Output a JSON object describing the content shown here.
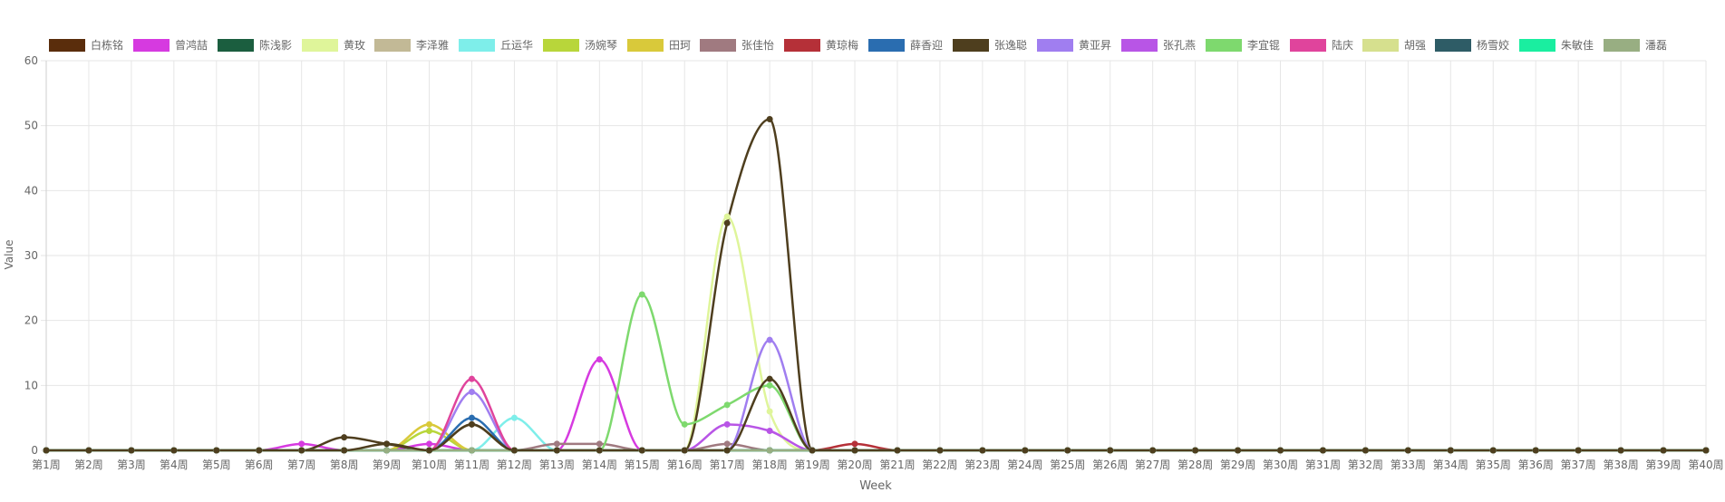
{
  "chart_data": {
    "type": "line",
    "xlabel": "Week",
    "ylabel": "Value",
    "ylim": [
      0,
      60
    ],
    "yticks": [
      0,
      10,
      20,
      30,
      40,
      50,
      60
    ],
    "grid": true,
    "legend_position": "top",
    "categories": [
      "第1周",
      "第2周",
      "第3周",
      "第4周",
      "第5周",
      "第6周",
      "第7周",
      "第8周",
      "第9周",
      "第10周",
      "第11周",
      "第12周",
      "第13周",
      "第14周",
      "第15周",
      "第16周",
      "第17周",
      "第18周",
      "第19周",
      "第20周",
      "第21周",
      "第22周",
      "第23周",
      "第24周",
      "第25周",
      "第26周",
      "第27周",
      "第28周",
      "第29周",
      "第30周",
      "第31周",
      "第32周",
      "第33周",
      "第34周",
      "第35周",
      "第36周",
      "第37周",
      "第38周",
      "第39周",
      "第40周"
    ],
    "series": [
      {
        "name": "白栋铭",
        "color": "#5a2d0c",
        "values": [
          0,
          0,
          0,
          0,
          0,
          0,
          0,
          0,
          0,
          0,
          0,
          0,
          0,
          0,
          0,
          0,
          0,
          0,
          0,
          0,
          0,
          0,
          0,
          0,
          0,
          0,
          0,
          0,
          0,
          0,
          0,
          0,
          0,
          0,
          0,
          0,
          0,
          0,
          0,
          0
        ]
      },
      {
        "name": "曾鸿喆",
        "color": "#d63ae0",
        "values": [
          0,
          0,
          0,
          0,
          0,
          0,
          1,
          0,
          0,
          1,
          0,
          0,
          0,
          14,
          0,
          0,
          0,
          0,
          0,
          0,
          0,
          0,
          0,
          0,
          0,
          0,
          0,
          0,
          0,
          0,
          0,
          0,
          0,
          0,
          0,
          0,
          0,
          0,
          0,
          0
        ]
      },
      {
        "name": "陈浅影",
        "color": "#1b5e3f",
        "values": [
          0,
          0,
          0,
          0,
          0,
          0,
          0,
          0,
          0,
          0,
          0,
          0,
          0,
          0,
          0,
          0,
          0,
          0,
          0,
          0,
          0,
          0,
          0,
          0,
          0,
          0,
          0,
          0,
          0,
          0,
          0,
          0,
          0,
          0,
          0,
          0,
          0,
          0,
          0,
          0
        ]
      },
      {
        "name": "黄玫",
        "color": "#dff59a",
        "values": [
          0,
          0,
          0,
          0,
          0,
          0,
          0,
          0,
          0,
          0,
          0,
          0,
          0,
          0,
          0,
          0,
          36,
          6,
          0,
          0,
          0,
          0,
          0,
          0,
          0,
          0,
          0,
          0,
          0,
          0,
          0,
          0,
          0,
          0,
          0,
          0,
          0,
          0,
          0,
          0
        ]
      },
      {
        "name": "李泽雅",
        "color": "#c2b996",
        "values": [
          0,
          0,
          0,
          0,
          0,
          0,
          0,
          0,
          0,
          0,
          0,
          0,
          0,
          0,
          0,
          0,
          0,
          0,
          0,
          0,
          0,
          0,
          0,
          0,
          0,
          0,
          0,
          0,
          0,
          0,
          0,
          0,
          0,
          0,
          0,
          0,
          0,
          0,
          0,
          0
        ]
      },
      {
        "name": "丘运华",
        "color": "#7eeeea",
        "values": [
          0,
          0,
          0,
          0,
          0,
          0,
          0,
          0,
          0,
          0,
          0,
          5,
          0,
          0,
          0,
          0,
          0,
          0,
          0,
          0,
          0,
          0,
          0,
          0,
          0,
          0,
          0,
          0,
          0,
          0,
          0,
          0,
          0,
          0,
          0,
          0,
          0,
          0,
          0,
          0
        ]
      },
      {
        "name": "汤婉琴",
        "color": "#b8d63a",
        "values": [
          0,
          0,
          0,
          0,
          0,
          0,
          0,
          0,
          0,
          3,
          0,
          0,
          0,
          0,
          0,
          0,
          0,
          0,
          0,
          0,
          0,
          0,
          0,
          0,
          0,
          0,
          0,
          0,
          0,
          0,
          0,
          0,
          0,
          0,
          0,
          0,
          0,
          0,
          0,
          0
        ]
      },
      {
        "name": "田珂",
        "color": "#d9c93a",
        "values": [
          0,
          0,
          0,
          0,
          0,
          0,
          0,
          0,
          0,
          4,
          0,
          0,
          0,
          0,
          0,
          0,
          0,
          0,
          0,
          0,
          0,
          0,
          0,
          0,
          0,
          0,
          0,
          0,
          0,
          0,
          0,
          0,
          0,
          0,
          0,
          0,
          0,
          0,
          0,
          0
        ]
      },
      {
        "name": "张佳怡",
        "color": "#a07a80",
        "values": [
          0,
          0,
          0,
          0,
          0,
          0,
          0,
          0,
          0,
          0,
          0,
          0,
          1,
          1,
          0,
          0,
          1,
          0,
          0,
          0,
          0,
          0,
          0,
          0,
          0,
          0,
          0,
          0,
          0,
          0,
          0,
          0,
          0,
          0,
          0,
          0,
          0,
          0,
          0,
          0
        ]
      },
      {
        "name": "黄琼梅",
        "color": "#b53038",
        "values": [
          0,
          0,
          0,
          0,
          0,
          0,
          0,
          0,
          0,
          0,
          0,
          0,
          0,
          0,
          0,
          0,
          0,
          0,
          0,
          1,
          0,
          0,
          0,
          0,
          0,
          0,
          0,
          0,
          0,
          0,
          0,
          0,
          0,
          0,
          0,
          0,
          0,
          0,
          0,
          0
        ]
      },
      {
        "name": "薛香迎",
        "color": "#2a6db0",
        "values": [
          0,
          0,
          0,
          0,
          0,
          0,
          0,
          0,
          0,
          0,
          5,
          0,
          0,
          0,
          0,
          0,
          0,
          0,
          0,
          0,
          0,
          0,
          0,
          0,
          0,
          0,
          0,
          0,
          0,
          0,
          0,
          0,
          0,
          0,
          0,
          0,
          0,
          0,
          0,
          0
        ]
      },
      {
        "name": "张逸聪",
        "color": "#4e3e1e",
        "values": [
          0,
          0,
          0,
          0,
          0,
          0,
          0,
          2,
          1,
          0,
          4,
          0,
          0,
          0,
          0,
          0,
          35,
          51,
          0,
          0,
          0,
          0,
          0,
          0,
          0,
          0,
          0,
          0,
          0,
          0,
          0,
          0,
          0,
          0,
          0,
          0,
          0,
          0,
          0,
          0
        ]
      },
      {
        "name": "黄亚昇",
        "color": "#a07ef0",
        "values": [
          0,
          0,
          0,
          0,
          0,
          0,
          0,
          0,
          0,
          0,
          9,
          0,
          0,
          0,
          0,
          0,
          0,
          17,
          0,
          0,
          0,
          0,
          0,
          0,
          0,
          0,
          0,
          0,
          0,
          0,
          0,
          0,
          0,
          0,
          0,
          0,
          0,
          0,
          0,
          0
        ]
      },
      {
        "name": "张孔燕",
        "color": "#b855e6",
        "values": [
          0,
          0,
          0,
          0,
          0,
          0,
          0,
          0,
          0,
          0,
          0,
          0,
          0,
          0,
          0,
          0,
          4,
          3,
          0,
          0,
          0,
          0,
          0,
          0,
          0,
          0,
          0,
          0,
          0,
          0,
          0,
          0,
          0,
          0,
          0,
          0,
          0,
          0,
          0,
          0
        ]
      },
      {
        "name": "李宜锟",
        "color": "#7ed96e",
        "values": [
          0,
          0,
          0,
          0,
          0,
          0,
          0,
          0,
          0,
          0,
          0,
          0,
          0,
          0,
          24,
          4,
          7,
          10,
          0,
          0,
          0,
          0,
          0,
          0,
          0,
          0,
          0,
          0,
          0,
          0,
          0,
          0,
          0,
          0,
          0,
          0,
          0,
          0,
          0,
          0
        ]
      },
      {
        "name": "陆庆",
        "color": "#e0449c",
        "values": [
          0,
          0,
          0,
          0,
          0,
          0,
          0,
          0,
          0,
          0,
          11,
          0,
          0,
          0,
          0,
          0,
          0,
          0,
          0,
          0,
          0,
          0,
          0,
          0,
          0,
          0,
          0,
          0,
          0,
          0,
          0,
          0,
          0,
          0,
          0,
          0,
          0,
          0,
          0,
          0
        ]
      },
      {
        "name": "胡强",
        "color": "#d6e08e",
        "values": [
          0,
          0,
          0,
          0,
          0,
          0,
          0,
          0,
          0,
          0,
          0,
          0,
          0,
          0,
          0,
          0,
          0,
          0,
          0,
          0,
          0,
          0,
          0,
          0,
          0,
          0,
          0,
          0,
          0,
          0,
          0,
          0,
          0,
          0,
          0,
          0,
          0,
          0,
          0,
          0
        ]
      },
      {
        "name": "杨雪姣",
        "color": "#2e5c66",
        "values": [
          0,
          0,
          0,
          0,
          0,
          0,
          0,
          0,
          0,
          0,
          0,
          0,
          0,
          0,
          0,
          0,
          0,
          0,
          0,
          0,
          0,
          0,
          0,
          0,
          0,
          0,
          0,
          0,
          0,
          0,
          0,
          0,
          0,
          0,
          0,
          0,
          0,
          0,
          0,
          0
        ]
      },
      {
        "name": "朱敏佳",
        "color": "#1aeea0",
        "values": [
          0,
          0,
          0,
          0,
          0,
          0,
          0,
          0,
          0,
          0,
          0,
          0,
          0,
          0,
          0,
          0,
          0,
          0,
          0,
          0,
          0,
          0,
          0,
          0,
          0,
          0,
          0,
          0,
          0,
          0,
          0,
          0,
          0,
          0,
          0,
          0,
          0,
          0,
          0,
          0
        ]
      },
      {
        "name": "潘磊",
        "color": "#98ae82",
        "values": [
          0,
          0,
          0,
          0,
          0,
          0,
          0,
          0,
          0,
          0,
          0,
          0,
          0,
          0,
          0,
          0,
          0,
          0,
          0,
          0,
          0,
          0,
          0,
          0,
          0,
          0,
          0,
          0,
          0,
          0,
          0,
          0,
          0,
          0,
          0,
          0,
          0,
          0,
          0,
          0
        ]
      },
      {
        "name": "",
        "color": "#4e3e1e",
        "values": [
          0,
          0,
          0,
          0,
          0,
          0,
          0,
          0,
          1,
          0,
          4,
          0,
          0,
          0,
          0,
          0,
          0,
          11,
          0,
          0,
          0,
          0,
          0,
          0,
          0,
          0,
          0,
          0,
          0,
          0,
          0,
          0,
          0,
          0,
          0,
          0,
          0,
          0,
          0,
          0
        ]
      }
    ]
  }
}
